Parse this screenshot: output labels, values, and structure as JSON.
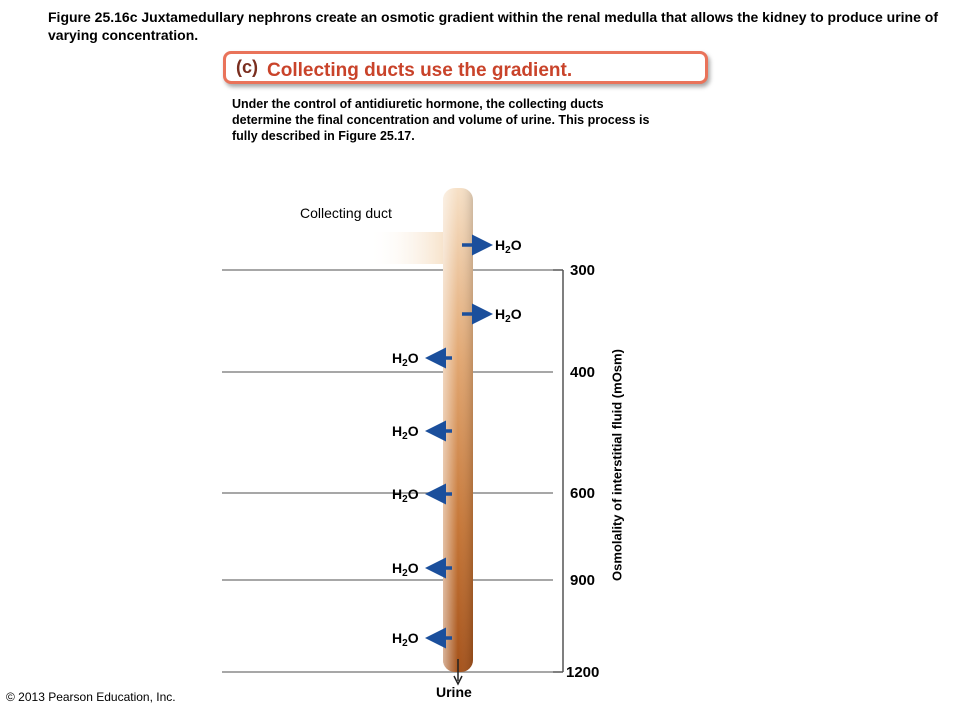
{
  "figure": {
    "caption": "Figure 25.16c  Juxtamedullary nephrons create an osmotic gradient within the renal medulla that allows the kidney to produce urine of varying concentration."
  },
  "panel": {
    "letter": "(c)",
    "heading": "Collecting ducts use the gradient.",
    "description": "Under the control of antidiuretic hormone, the collecting ducts determine the final concentration and volume of urine. This process is fully described in Figure 25.17."
  },
  "labels": {
    "collecting_duct": "Collecting duct",
    "urine": "Urine",
    "axis": "Osmolality of interstitial fluid (mOsm)"
  },
  "water": {
    "main": "H",
    "subscript": "2",
    "tail": "O"
  },
  "osmolality_levels": [
    "300",
    "400",
    "600",
    "900",
    "1200"
  ],
  "copyright": "© 2013 Pearson Education, Inc.",
  "colors": {
    "arrow": "#1b4f9c",
    "banner_border": "#e9735a",
    "heading": "#c9432a",
    "duct_light": "#f4d6b2",
    "duct_dark": "#b05a1c"
  }
}
